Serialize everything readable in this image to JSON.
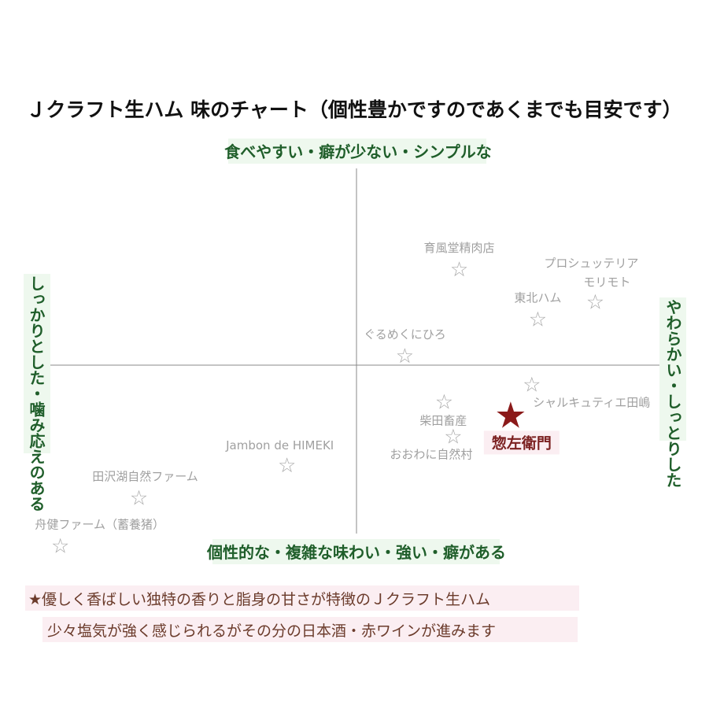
{
  "chart_data": {
    "type": "scatter",
    "title": "Ｊクラフト生ハム 味のチャート（個性豊かですのであくまでも目安です）",
    "axis_labels": {
      "top": "食べやすい・癖が少ない・シンプルな",
      "bottom": "個性的な・複雑な味わい・強い・癖がある",
      "left": "しっかりとした・噛み応えのある",
      "right": "やわらかい・しっとりした"
    },
    "xlim": [
      -1,
      1
    ],
    "ylim": [
      -1,
      1
    ],
    "grid": false,
    "marker": "☆",
    "points": [
      {
        "label": "育風堂精肉店",
        "x": 0.34,
        "y": 0.5
      },
      {
        "label": "プロシュッテリア\nモリモト",
        "x": 0.79,
        "y": 0.33
      },
      {
        "label": "東北ハム",
        "x": 0.6,
        "y": 0.24
      },
      {
        "label": "ぐるめくにひろ",
        "x": 0.16,
        "y": 0.05
      },
      {
        "label": "シャルキュティエ田嶋",
        "x": 0.58,
        "y": -0.1
      },
      {
        "label": "柴田畜産",
        "x": 0.29,
        "y": -0.19
      },
      {
        "label": "おおわに自然村",
        "x": 0.32,
        "y": -0.37
      },
      {
        "label": "Jambon de HIMEKI",
        "x": -0.23,
        "y": -0.52
      },
      {
        "label": "田沢湖自然ファーム",
        "x": -0.72,
        "y": -0.69
      },
      {
        "label": "舟健ファーム（蓄養猪）",
        "x": -0.98,
        "y": -0.94
      }
    ],
    "highlight": {
      "label": "惣左衛門",
      "x": 0.51,
      "y": -0.26,
      "color": "#8b1a1a",
      "marker": "★"
    }
  },
  "notes": [
    "★優しく香ばしい独特の香りと脂身の甘さが特徴のＪクラフト生ハム",
    "少々塩気が強く感じられるがその分の日本酒・赤ワインが進みます"
  ],
  "colors": {
    "axis_label": "#1f5e2a",
    "axis_label_bg": "#eef8ee",
    "note_bg": "#fbeef2",
    "point_star": "#aaaaaa",
    "point_label": "#a0a0a0",
    "axis_line": "#888888"
  }
}
